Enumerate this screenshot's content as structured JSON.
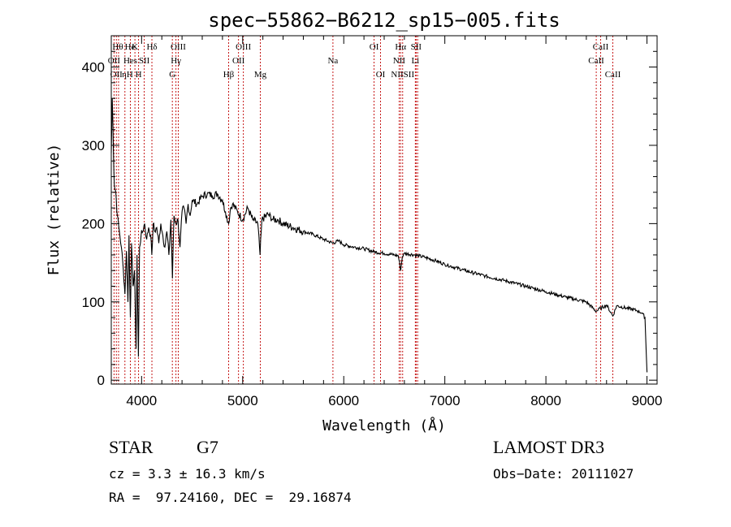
{
  "chart_data": {
    "type": "line",
    "title": "spec−55862−B6212_sp15−005.fits",
    "xlabel": "Wavelength (Å)",
    "ylabel": "Flux (relative)",
    "xlim": [
      3700,
      9100
    ],
    "ylim": [
      -5,
      440
    ],
    "x_ticks": [
      4000,
      5000,
      6000,
      7000,
      8000,
      9000
    ],
    "x_tick_labels": [
      "4000",
      "5000",
      "6000",
      "7000",
      "8000",
      "9000"
    ],
    "y_ticks": [
      0,
      100,
      200,
      300,
      400
    ],
    "y_tick_labels": [
      "0",
      "100",
      "200",
      "300",
      "400"
    ],
    "grid": false,
    "series": [
      {
        "name": "spectrum",
        "color": "#000000",
        "x": [
          3700,
          3710,
          3720,
          3730,
          3745,
          3760,
          3780,
          3800,
          3820,
          3835,
          3850,
          3865,
          3875,
          3889,
          3900,
          3915,
          3930,
          3945,
          3955,
          3968,
          3980,
          3995,
          4010,
          4030,
          4050,
          4070,
          4090,
          4101,
          4115,
          4130,
          4150,
          4170,
          4190,
          4210,
          4230,
          4250,
          4270,
          4290,
          4305,
          4320,
          4340,
          4360,
          4380,
          4400,
          4420,
          4440,
          4460,
          4480,
          4500,
          4550,
          4600,
          4650,
          4700,
          4750,
          4800,
          4830,
          4861,
          4880,
          4900,
          4950,
          5000,
          5050,
          5100,
          5150,
          5172,
          5190,
          5250,
          5300,
          5350,
          5400,
          5500,
          5600,
          5700,
          5800,
          5893,
          5950,
          6000,
          6100,
          6200,
          6300,
          6400,
          6500,
          6540,
          6563,
          6580,
          6600,
          6700,
          6800,
          6900,
          7000,
          7200,
          7400,
          7600,
          7800,
          8000,
          8200,
          8400,
          8498,
          8542,
          8600,
          8662,
          8700,
          8800,
          8900,
          8950,
          8980,
          9000
        ],
        "values": [
          290,
          360,
          300,
          250,
          240,
          210,
          190,
          170,
          140,
          110,
          165,
          100,
          185,
          80,
          175,
          120,
          140,
          40,
          160,
          30,
          170,
          185,
          190,
          200,
          180,
          195,
          185,
          160,
          200,
          190,
          195,
          175,
          200,
          185,
          170,
          190,
          160,
          205,
          130,
          210,
          200,
          205,
          170,
          215,
          220,
          200,
          225,
          210,
          230,
          225,
          235,
          238,
          236,
          238,
          230,
          215,
          200,
          220,
          225,
          215,
          205,
          220,
          205,
          200,
          160,
          205,
          212,
          205,
          205,
          200,
          195,
          190,
          186,
          180,
          175,
          178,
          173,
          170,
          168,
          164,
          162,
          160,
          159,
          140,
          158,
          162,
          160,
          157,
          153,
          148,
          140,
          133,
          127,
          120,
          113,
          106,
          100,
          88,
          92,
          96,
          82,
          95,
          92,
          89,
          86,
          80,
          10
        ]
      }
    ],
    "lines": [
      {
        "x": 3727,
        "label": "OII",
        "row": 2
      },
      {
        "x": 3750,
        "label": "OII",
        "row": 3
      },
      {
        "x": 3772,
        "label": "",
        "row": 1
      },
      {
        "x": 3835,
        "label": "",
        "row": 1
      },
      {
        "x": 3889,
        "label": "Hes",
        "row": 2
      },
      {
        "x": 3934,
        "label": "K",
        "row": 1
      },
      {
        "x": 3970,
        "label": "H",
        "row": 3
      },
      {
        "x": 4026,
        "label": "SII",
        "row": 2
      },
      {
        "x": 4102,
        "label": "Hδ",
        "row": 1
      },
      {
        "x": 4304,
        "label": "G",
        "row": 3
      },
      {
        "x": 4340,
        "label": "Hγ",
        "row": 2
      },
      {
        "x": 4363,
        "label": "OIII",
        "row": 1
      },
      {
        "x": 4861,
        "label": "Hβ",
        "row": 3
      },
      {
        "x": 4959,
        "label": "OII",
        "row": 2
      },
      {
        "x": 5007,
        "label": "OIII",
        "row": 1
      },
      {
        "x": 5175,
        "label": "Mg",
        "row": 3
      },
      {
        "x": 5893,
        "label": "Na",
        "row": 2
      },
      {
        "x": 6300,
        "label": "OI",
        "row": 1
      },
      {
        "x": 6364,
        "label": "OI",
        "row": 3
      },
      {
        "x": 6548,
        "label": "NII",
        "row": 2
      },
      {
        "x": 6563,
        "label": "Hα",
        "row": 1
      },
      {
        "x": 6583,
        "label": "NIISII",
        "row": 3
      },
      {
        "x": 6708,
        "label": "Li",
        "row": 2
      },
      {
        "x": 6716,
        "label": "SII",
        "row": 1
      },
      {
        "x": 6731,
        "label": "",
        "row": 1
      },
      {
        "x": 8498,
        "label": "CaII",
        "row": 2
      },
      {
        "x": 8542,
        "label": "CaII",
        "row": 1
      },
      {
        "x": 8662,
        "label": "CaII",
        "row": 3
      }
    ],
    "line_color": "#c00000",
    "line_extra_labels": [
      {
        "text": "Hθ",
        "row": 1
      },
      {
        "text": "He",
        "row": 1
      },
      {
        "text": "ηH",
        "row": 3
      }
    ]
  },
  "info": {
    "object_class": "STAR",
    "subclass": "G7",
    "survey": "LAMOST DR3",
    "redshift": "cz = 3.3 ± 16.3 km/s",
    "obs_date": "Obs−Date: 20111027",
    "coords": "RA =  97.24160, DEC =  29.16874"
  }
}
